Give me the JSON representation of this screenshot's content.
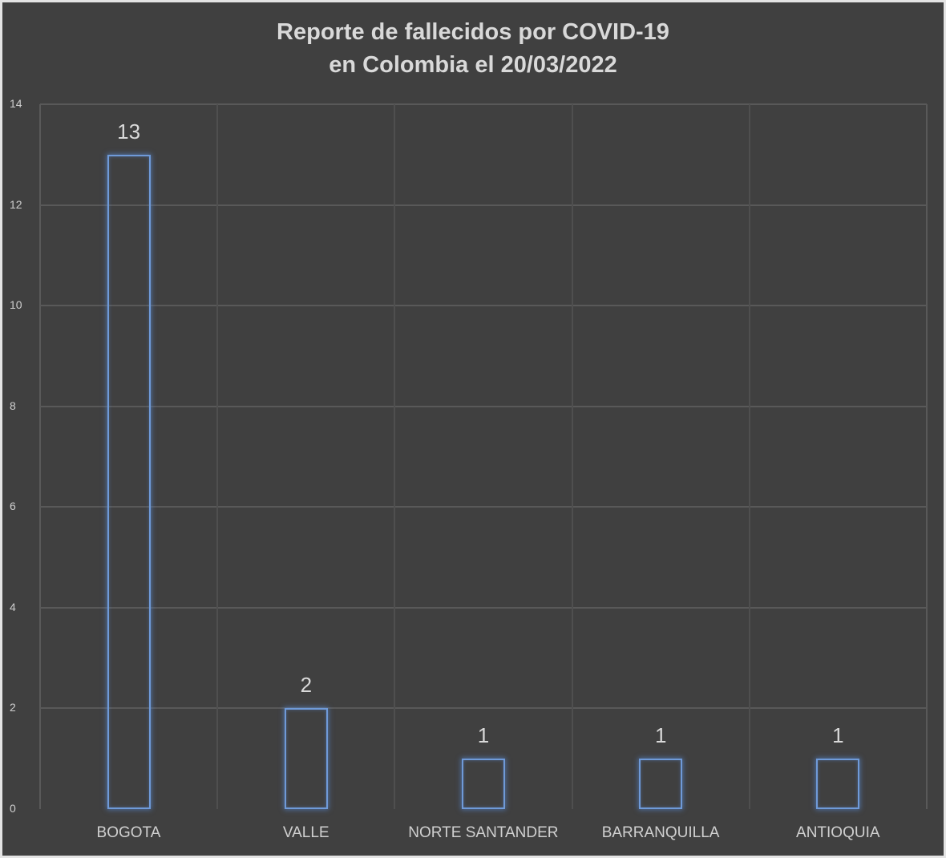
{
  "chart_data": {
    "type": "bar",
    "title": "Reporte de fallecidos por COVID-19 en Colombia el 20/03/2022",
    "title_lines": [
      "Reporte de fallecidos por COVID-19",
      "en Colombia el 20/03/2022"
    ],
    "categories": [
      "BOGOTA",
      "VALLE",
      "NORTE SANTANDER",
      "BARRANQUILLA",
      "ANTIOQUIA"
    ],
    "values": [
      13,
      2,
      1,
      1,
      1
    ],
    "data_labels": [
      "13",
      "2",
      "1",
      "1",
      "1"
    ],
    "xlabel": "",
    "ylabel": "",
    "ylim": [
      0,
      14
    ],
    "yticks": [
      "0",
      "2",
      "4",
      "6",
      "8",
      "10",
      "12",
      "14"
    ],
    "grid": true,
    "legend": null,
    "colors": {
      "background": "#404040",
      "bar_outline": "#6f9ad8",
      "text": "#d9d9d9",
      "grid": "#595959"
    }
  }
}
